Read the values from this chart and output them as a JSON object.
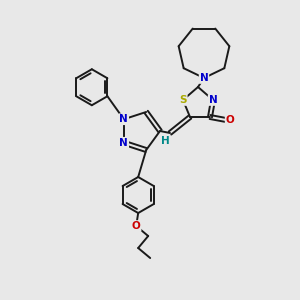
{
  "background_color": "#e8e8e8",
  "bond_color": "#1a1a1a",
  "atom_colors": {
    "N": "#0000cc",
    "O": "#cc0000",
    "S": "#aaaa00",
    "H": "#008888",
    "C": "#1a1a1a"
  },
  "figsize": [
    3.0,
    3.0
  ],
  "dpi": 100
}
